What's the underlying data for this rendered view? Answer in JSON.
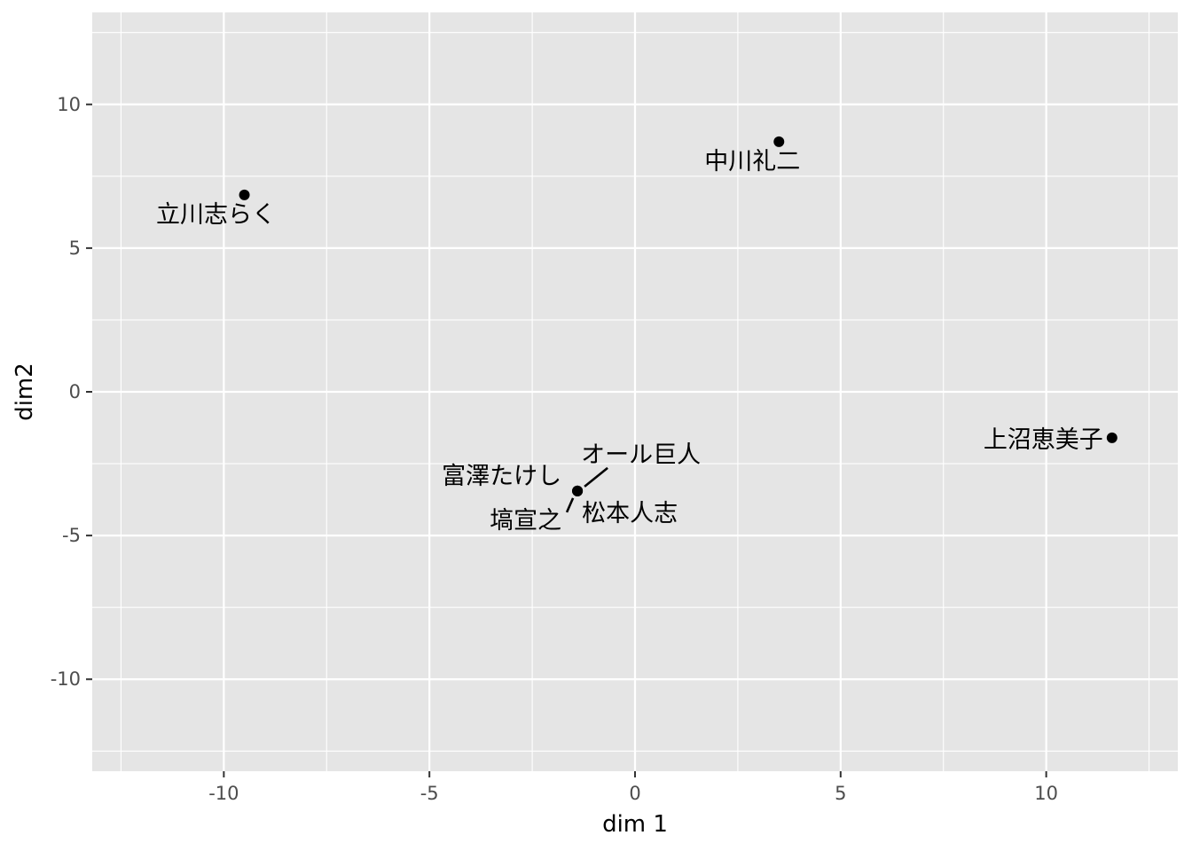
{
  "chart_data": {
    "type": "scatter",
    "xlabel": "dim 1",
    "ylabel": "dim2",
    "xlim": [
      -13.2,
      13.2
    ],
    "ylim": [
      -13.2,
      13.2
    ],
    "x_ticks": [
      -10,
      -5,
      0,
      5,
      10
    ],
    "y_ticks": [
      -10,
      -5,
      0,
      5,
      10
    ],
    "x_tick_labels": [
      "-10",
      "-5",
      "0",
      "5",
      "10"
    ],
    "y_tick_labels": [
      "-10",
      "-5",
      "0",
      "5",
      "10"
    ],
    "grid": true,
    "legend": "none",
    "colors": {
      "panel": "#e5e5e5",
      "grid": "#ffffff",
      "point": "#000000",
      "text": "#000000",
      "tick": "#4d4d4d"
    },
    "points": [
      {
        "label": "立川志らく",
        "x": -9.5,
        "y": 6.85
      },
      {
        "label": "中川礼二",
        "x": 3.5,
        "y": 8.7
      },
      {
        "label": "上沼恵美子",
        "x": 11.6,
        "y": -1.6
      },
      {
        "label": "富澤たけし",
        "x": -1.4,
        "y": -3.45
      },
      {
        "label": "オール巨人",
        "x": -1.4,
        "y": -3.45
      },
      {
        "label": "塙宣之",
        "x": -1.4,
        "y": -3.45
      },
      {
        "label": "松本人志",
        "x": -1.4,
        "y": -3.45
      }
    ]
  }
}
